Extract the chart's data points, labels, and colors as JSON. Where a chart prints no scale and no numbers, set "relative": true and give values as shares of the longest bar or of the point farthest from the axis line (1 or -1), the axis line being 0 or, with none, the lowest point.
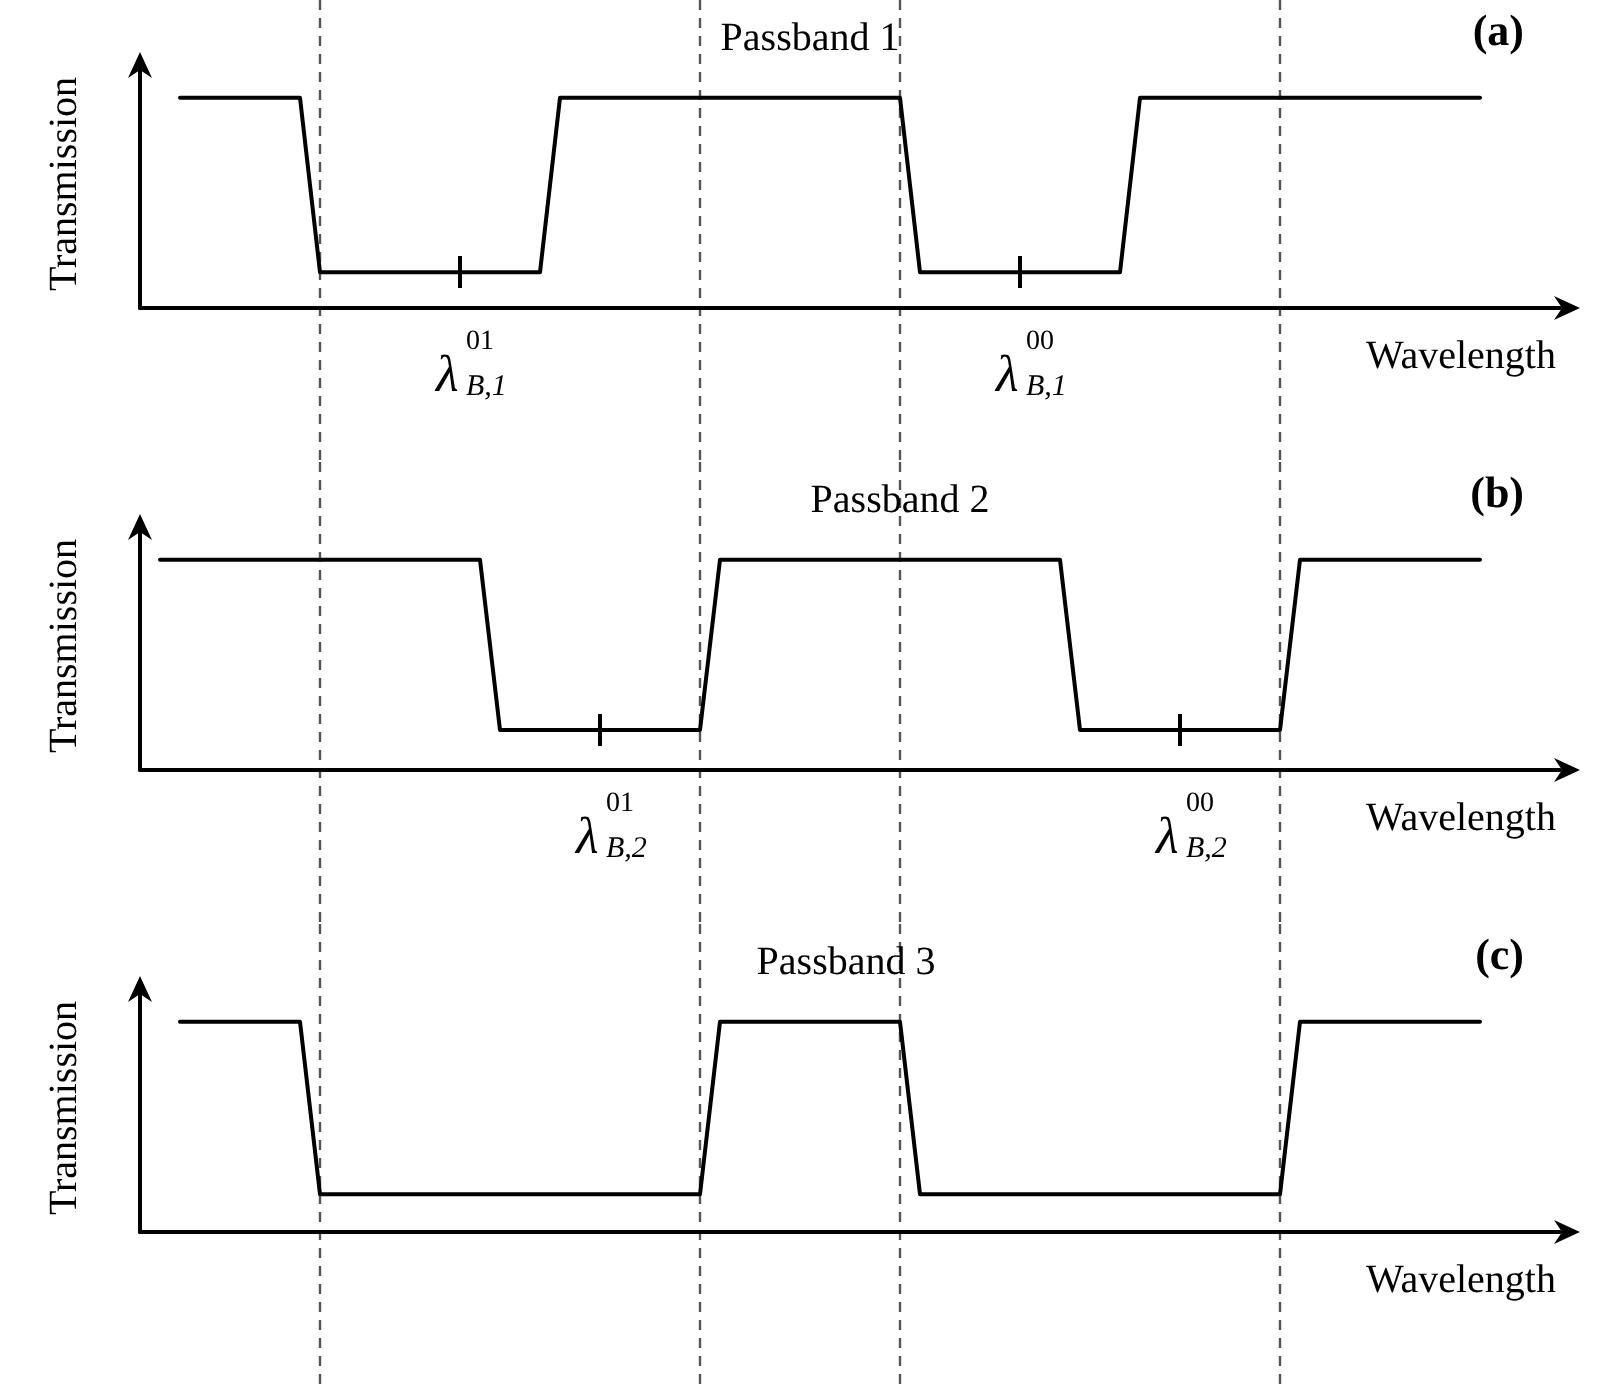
{
  "chart_data": [
    {
      "type": "line",
      "relative": true,
      "title": "Passband 1",
      "xlabel": "Wavelength",
      "ylabel": "Transmission",
      "annotations": [
        "(a)",
        "λ$^{01}$$_{B,1}$",
        "λ$^{00}$$_{B,1}$"
      ],
      "categories": [
        null,
        null,
        null,
        null,
        null,
        null,
        null,
        null,
        null,
        null,
        null,
        null,
        null,
        null,
        null,
        null,
        null,
        null,
        null,
        null,
        null,
        null,
        null,
        null,
        null,
        null,
        null,
        null,
        null,
        null,
        null,
        null,
        null,
        null,
        null,
        null,
        null,
        null,
        null,
        null,
        null,
        null,
        null,
        null,
        null,
        null,
        null,
        null,
        null,
        null,
        null,
        null,
        null,
        null,
        null,
        null,
        null,
        null,
        null,
        null,
        null,
        null,
        null,
        null,
        null,
        null,
        null,
        null,
        null,
        null,
        null,
        null
      ],
      "grid": "x",
      "series": [
        {
          "color": "#000000",
          "values": [
            null,
            null,
            1,
            1,
            1,
            1,
            1,
            1,
            1,
            0.17,
            0.17,
            0.17,
            0.17,
            0.17,
            0.17,
            0.17,
            0.17,
            0.17,
            0.17,
            0.17,
            0.17,
            1,
            1,
            1,
            1,
            1,
            1,
            1,
            1,
            1,
            1,
            1,
            1,
            1,
            1,
            1,
            1,
            1,
            1,
            0.17,
            0.17,
            0.17,
            0.17,
            0.17,
            0.17,
            0.17,
            0.17,
            0.17,
            0.17,
            0.17,
            1,
            1,
            1,
            1,
            1,
            1,
            1,
            1,
            1,
            1,
            1,
            1,
            1,
            1,
            1,
            1,
            1,
            1,
            null,
            null,
            null,
            null
          ]
        }
      ],
      "marker": "none",
      "line_style": "solid"
    },
    {
      "type": "line",
      "relative": true,
      "title": "Passband 2",
      "xlabel": "Wavelength",
      "ylabel": "Transmission",
      "annotations": [
        "(b)",
        "λ$^{01}$$_{B,2}$",
        "λ$^{00}$$_{B,2}$"
      ],
      "categories": [
        null,
        null,
        null,
        null,
        null,
        null,
        null,
        null,
        null,
        null,
        null,
        null,
        null,
        null,
        null,
        null,
        null,
        null,
        null,
        null,
        null,
        null,
        null,
        null,
        null,
        null,
        null,
        null,
        null,
        null,
        null,
        null,
        null,
        null,
        null,
        null,
        null,
        null,
        null,
        null,
        null,
        null,
        null,
        null,
        null,
        null,
        null,
        null,
        null,
        null,
        null,
        null,
        null,
        null,
        null,
        null,
        null,
        null,
        null,
        null,
        null,
        null,
        null,
        null,
        null,
        null,
        null,
        null,
        null,
        null,
        null,
        null
      ],
      "grid": "x",
      "series": [
        {
          "color": "#000000",
          "values": [
            null,
            1,
            1,
            1,
            1,
            1,
            1,
            1,
            1,
            1,
            1,
            1,
            1,
            1,
            1,
            1,
            1,
            1,
            0.19,
            0.19,
            0.19,
            0.19,
            0.19,
            0.19,
            0.19,
            0.19,
            0.19,
            0.19,
            0.19,
            1,
            1,
            1,
            1,
            1,
            1,
            1,
            1,
            1,
            1,
            1,
            1,
            1,
            1,
            1,
            1,
            1,
            1,
            0.19,
            0.19,
            0.19,
            0.19,
            0.19,
            0.19,
            0.19,
            0.19,
            0.19,
            0.19,
            0.19,
            1,
            1,
            1,
            1,
            1,
            1,
            1,
            1,
            1,
            1,
            null,
            null,
            null,
            null
          ]
        }
      ],
      "marker": "none",
      "line_style": "solid"
    },
    {
      "type": "line",
      "relative": true,
      "title": "Passband 3",
      "xlabel": "Wavelength",
      "ylabel": "Transmission",
      "annotations": [
        "(c)"
      ],
      "categories": [
        null,
        null,
        null,
        null,
        null,
        null,
        null,
        null,
        null,
        null,
        null,
        null,
        null,
        null,
        null,
        null,
        null,
        null,
        null,
        null,
        null,
        null,
        null,
        null,
        null,
        null,
        null,
        null,
        null,
        null,
        null,
        null,
        null,
        null,
        null,
        null,
        null,
        null,
        null,
        null,
        null,
        null,
        null,
        null,
        null,
        null,
        null,
        null,
        null,
        null,
        null,
        null,
        null,
        null,
        null,
        null,
        null,
        null,
        null,
        null,
        null,
        null,
        null,
        null,
        null,
        null,
        null,
        null,
        null,
        null,
        null,
        null
      ],
      "grid": "x",
      "series": [
        {
          "color": "#000000",
          "values": [
            null,
            null,
            1,
            1,
            1,
            1,
            1,
            1,
            1,
            0.18,
            0.18,
            0.18,
            0.18,
            0.18,
            0.18,
            0.18,
            0.18,
            0.18,
            0.18,
            0.18,
            0.18,
            0.18,
            0.18,
            0.18,
            0.18,
            0.18,
            0.18,
            0.18,
            0.18,
            1,
            1,
            1,
            1,
            1,
            1,
            1,
            1,
            1,
            1,
            0.18,
            0.18,
            0.18,
            0.18,
            0.18,
            0.18,
            0.18,
            0.18,
            0.18,
            0.18,
            0.18,
            0.18,
            0.18,
            0.18,
            0.18,
            0.18,
            0.18,
            0.18,
            0.18,
            1,
            1,
            1,
            1,
            1,
            1,
            1,
            1,
            1,
            1,
            null,
            null,
            null,
            null
          ]
        }
      ],
      "marker": "none",
      "line_style": "solid"
    }
  ]
}
